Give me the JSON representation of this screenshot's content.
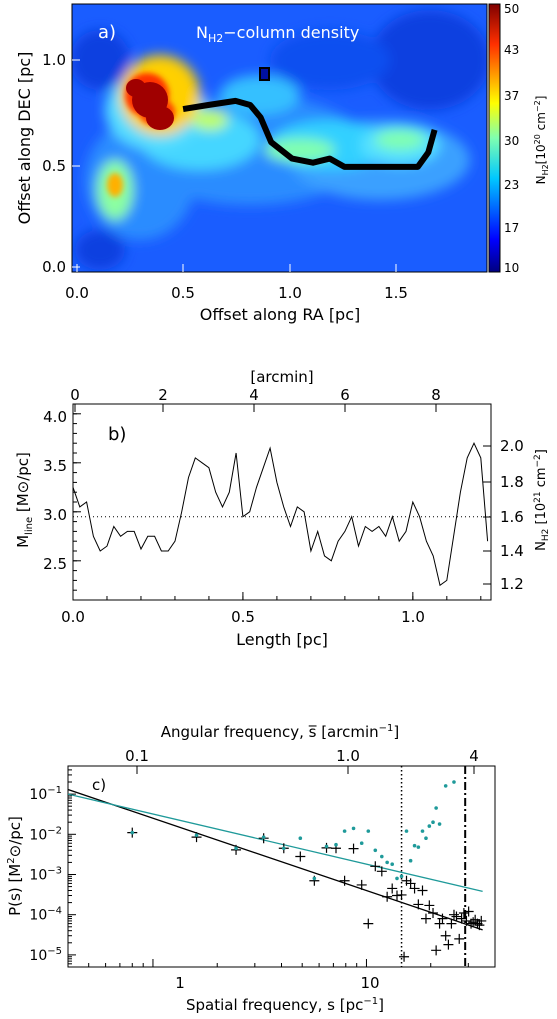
{
  "panel_a": {
    "tag": "a)",
    "title_main": "N",
    "title_sub": "H2",
    "title_rest": "−column density",
    "xlabel": "Offset along RA [pc]",
    "ylabel": "Offset along DEC [pc]",
    "xticks": [
      "0.0",
      "0.5",
      "1.0",
      "1.5"
    ],
    "yticks": [
      "0.0",
      "0.5",
      "1.0"
    ],
    "colorbar_ticks": [
      "10",
      "17",
      "23",
      "30",
      "37",
      "43",
      "50"
    ],
    "colorbar_label_main": "N",
    "colorbar_label_sub": "H2",
    "colorbar_label_units": "[10",
    "colorbar_label_exp": "20",
    "colorbar_label_tail": " cm",
    "colorbar_label_exp2": "−2",
    "colorbar_label_close": "]"
  },
  "panel_b": {
    "tag": "b)",
    "top_axis_label": "[arcmin]",
    "top_ticks": [
      "0",
      "2",
      "4",
      "6",
      "8"
    ],
    "xlabel": "Length [pc]",
    "xticks": [
      "0.0",
      "0.5",
      "1.0"
    ],
    "yticks_left": [
      "2.5",
      "3.0",
      "3.5",
      "4.0"
    ],
    "yticks_right": [
      "1.2",
      "1.4",
      "1.6",
      "1.8",
      "2.0"
    ],
    "ylabel_left_main": "M",
    "ylabel_left_sub": "line",
    "ylabel_left_units": " [M⊙/pc]",
    "ylabel_right_main": "N",
    "ylabel_right_sub": "H2",
    "ylabel_right_units": " [10",
    "ylabel_right_exp": "21",
    "ylabel_right_tail": " cm",
    "ylabel_right_exp2": "−2",
    "ylabel_right_close": "]"
  },
  "panel_c": {
    "tag": "c)",
    "top_axis_label_main": "Angular frequency, s̅ [arcmin",
    "top_axis_label_exp": "−1",
    "top_axis_label_close": "]",
    "top_ticks": [
      "0.1",
      "1.0"
    ],
    "marker_label": "4",
    "xlabel_main": "Spatial frequency, s [pc",
    "xlabel_exp": "−1",
    "xlabel_close": "]",
    "xticks": [
      "1",
      "10"
    ],
    "yticks": [
      "10",
      "10",
      "10",
      "10",
      "10"
    ],
    "ytick_exps": [
      "−1",
      "−2",
      "−3",
      "−4",
      "−5"
    ],
    "ylabel_main": "P(s)  [M",
    "ylabel_exp": "2",
    "ylabel_sym": "⊙",
    "ylabel_close": "/pc]"
  },
  "colors": {
    "profile_line": "#000000",
    "teal": "#1f9a9a",
    "spine": "#000000"
  },
  "chart_data": [
    {
      "type": "heatmap",
      "title": "NH2−column density",
      "xlabel": "Offset along RA [pc]",
      "ylabel": "Offset along DEC [pc]",
      "xlim": [
        -0.05,
        1.93
      ],
      "ylim": [
        -0.03,
        1.27
      ],
      "colorbar_range": [
        10,
        50
      ],
      "colorscale": "jet",
      "spine_path": [
        [
          0.48,
          0.76
        ],
        [
          0.6,
          0.78
        ],
        [
          0.73,
          0.8
        ],
        [
          0.8,
          0.78
        ],
        [
          0.85,
          0.72
        ],
        [
          0.9,
          0.6
        ],
        [
          0.95,
          0.56
        ],
        [
          1.0,
          0.52
        ],
        [
          1.1,
          0.5
        ],
        [
          1.18,
          0.52
        ],
        [
          1.25,
          0.48
        ],
        [
          1.35,
          0.48
        ],
        [
          1.45,
          0.48
        ],
        [
          1.6,
          0.48
        ],
        [
          1.65,
          0.55
        ],
        [
          1.68,
          0.66
        ]
      ]
    },
    {
      "type": "line",
      "xlabel": "Length [pc]",
      "ylabel": "Mline [M⊙/pc]",
      "xlim": [
        0,
        1.23
      ],
      "ylim": [
        2.1,
        4.1
      ],
      "mean_line": 2.95,
      "x": [
        0.0,
        0.02,
        0.04,
        0.06,
        0.08,
        0.1,
        0.12,
        0.14,
        0.16,
        0.18,
        0.2,
        0.22,
        0.24,
        0.26,
        0.28,
        0.3,
        0.32,
        0.34,
        0.36,
        0.38,
        0.4,
        0.42,
        0.44,
        0.46,
        0.48,
        0.5,
        0.52,
        0.54,
        0.56,
        0.58,
        0.6,
        0.62,
        0.64,
        0.66,
        0.68,
        0.7,
        0.72,
        0.74,
        0.76,
        0.78,
        0.8,
        0.82,
        0.84,
        0.86,
        0.88,
        0.9,
        0.92,
        0.94,
        0.96,
        0.98,
        1.0,
        1.02,
        1.04,
        1.06,
        1.08,
        1.1,
        1.12,
        1.14,
        1.16,
        1.18,
        1.2,
        1.22
      ],
      "values": [
        3.25,
        3.05,
        3.1,
        2.75,
        2.6,
        2.65,
        2.85,
        2.75,
        2.8,
        2.8,
        2.62,
        2.75,
        2.75,
        2.6,
        2.6,
        2.7,
        3.0,
        3.35,
        3.55,
        3.5,
        3.45,
        3.2,
        3.05,
        3.2,
        3.6,
        2.95,
        3.0,
        3.25,
        3.45,
        3.65,
        3.3,
        3.05,
        2.85,
        3.05,
        3.0,
        2.6,
        2.8,
        2.55,
        2.5,
        2.7,
        2.8,
        2.95,
        2.65,
        2.85,
        2.8,
        2.85,
        2.75,
        2.95,
        2.7,
        2.8,
        3.1,
        2.95,
        2.7,
        2.55,
        2.25,
        2.3,
        2.75,
        3.2,
        3.55,
        3.7,
        3.55,
        2.7
      ]
    },
    {
      "type": "scatter",
      "xlabel": "Spatial frequency, s [pc−1]",
      "ylabel": "P(s) [M⊙2/pc]",
      "xscale": "log",
      "yscale": "log",
      "xlim": [
        0.4,
        40
      ],
      "ylim": [
        5e-06,
        0.5
      ],
      "vlines": [
        {
          "x": 14.6,
          "style": "dotted"
        },
        {
          "x": 29,
          "style": "dash-dot"
        }
      ],
      "series": [
        {
          "marker": "plus",
          "color": "#000000",
          "points": [
            [
              0.8,
              0.011
            ],
            [
              1.6,
              0.0085
            ],
            [
              2.45,
              0.0041
            ],
            [
              3.3,
              0.008
            ],
            [
              4.1,
              0.0045
            ],
            [
              4.9,
              0.0028
            ],
            [
              5.7,
              0.0007
            ],
            [
              6.5,
              0.0046
            ],
            [
              7.2,
              0.0045
            ],
            [
              7.9,
              0.0007
            ],
            [
              8.7,
              0.0044
            ],
            [
              9.5,
              0.00055
            ],
            [
              10.2,
              6e-05
            ],
            [
              11.0,
              0.0016
            ],
            [
              11.8,
              0.0012
            ],
            [
              12.5,
              0.00028
            ],
            [
              13.2,
              0.00045
            ],
            [
              13.9,
              0.0003
            ],
            [
              14.6,
              0.00031
            ],
            [
              15.4,
              0.0007
            ],
            [
              16.1,
              0.0006
            ],
            [
              16.8,
              0.00045
            ],
            [
              17.5,
              0.00018
            ],
            [
              18.3,
              0.0004
            ],
            [
              19.0,
              8e-05
            ],
            [
              19.7,
              0.00017
            ],
            [
              20.5,
              0.00011
            ],
            [
              21.2,
              1.3e-05
            ],
            [
              22.0,
              6e-05
            ],
            [
              22.7,
              8e-05
            ],
            [
              23.5,
              3e-05
            ],
            [
              24.2,
              1.8e-05
            ],
            [
              25.0,
              6e-05
            ],
            [
              25.7,
              0.0001
            ],
            [
              26.4,
              9e-05
            ],
            [
              27.2,
              2.5e-05
            ],
            [
              27.9,
              8e-05
            ],
            [
              28.6,
              0.00011
            ],
            [
              29.4,
              7e-05
            ],
            [
              30.1,
              0.00012
            ],
            [
              30.9,
              6e-05
            ],
            [
              31.6,
              6.5e-05
            ],
            [
              32.3,
              7.5e-05
            ],
            [
              33.1,
              6e-05
            ],
            [
              33.8,
              5.5e-05
            ],
            [
              34.5,
              7e-05
            ],
            [
              15.0,
              9e-06
            ]
          ]
        },
        {
          "marker": "dot",
          "color": "#1f9a9a",
          "points": [
            [
              0.8,
              0.011
            ],
            [
              1.6,
              0.0095
            ],
            [
              2.45,
              0.0045
            ],
            [
              3.3,
              0.0085
            ],
            [
              4.1,
              0.0045
            ],
            [
              4.9,
              0.008
            ],
            [
              5.7,
              0.0008
            ],
            [
              6.5,
              0.005
            ],
            [
              7.2,
              0.0055
            ],
            [
              7.9,
              0.012
            ],
            [
              8.7,
              0.014
            ],
            [
              9.5,
              0.006
            ],
            [
              10.2,
              0.012
            ],
            [
              11.0,
              0.004
            ],
            [
              11.8,
              0.0028
            ],
            [
              12.5,
              0.002
            ],
            [
              13.2,
              0.0018
            ],
            [
              13.9,
              0.0008
            ],
            [
              14.6,
              0.0009
            ],
            [
              15.4,
              0.012
            ],
            [
              16.1,
              0.0022
            ],
            [
              16.8,
              0.0052
            ],
            [
              17.5,
              0.0048
            ],
            [
              18.3,
              0.012
            ],
            [
              19.0,
              0.008
            ],
            [
              19.7,
              0.016
            ],
            [
              20.5,
              0.02
            ],
            [
              21.2,
              0.045
            ],
            [
              22.0,
              0.018
            ],
            [
              23.5,
              0.16
            ],
            [
              25.7,
              0.2
            ]
          ]
        }
      ],
      "fits": [
        {
          "color": "#000000",
          "slope": -1.8,
          "points": [
            [
              0.4,
              0.13
            ],
            [
              35,
              4.2e-05
            ]
          ]
        },
        {
          "color": "#1f9a9a",
          "slope": -1.08,
          "points": [
            [
              0.4,
              0.1
            ],
            [
              35,
              0.00038
            ]
          ]
        }
      ]
    }
  ]
}
